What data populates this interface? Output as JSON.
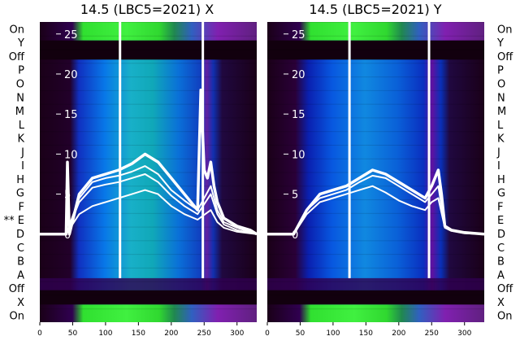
{
  "chart_data": [
    {
      "type": "heatmap",
      "title": "14.5 (LBC5=2021) X",
      "x_ticks": [
        0,
        50,
        100,
        150,
        200,
        250,
        300
      ],
      "xlim": [
        0,
        330
      ],
      "y_ticks": [
        0,
        5,
        10,
        15,
        20,
        25
      ],
      "ylim": [
        -11,
        26.5
      ],
      "row_labels": [
        "On",
        "Y",
        "Off",
        "P",
        "O",
        "N",
        "M",
        "L",
        "K",
        "J",
        "I",
        "H",
        "G",
        "F",
        "E",
        "D",
        "C",
        "B",
        "A",
        "Off",
        "X",
        "On"
      ],
      "marked_row": "E",
      "marker_text": "**",
      "series": [
        {
          "name": "",
          "x": [
            0,
            40,
            42,
            45,
            60,
            80,
            100,
            120,
            140,
            160,
            180,
            200,
            220,
            240,
            245,
            250,
            255,
            260,
            265,
            270,
            280,
            300,
            320,
            330
          ],
          "y": [
            0,
            0,
            9,
            0,
            5,
            7,
            7.5,
            8,
            8.8,
            10,
            9,
            7,
            5,
            3,
            18,
            8,
            7,
            9,
            6,
            4,
            2,
            1,
            0.5,
            0
          ]
        },
        {
          "name": "",
          "x": [
            0,
            40,
            60,
            80,
            100,
            120,
            140,
            160,
            180,
            200,
            220,
            240,
            260,
            270,
            280,
            300,
            330
          ],
          "y": [
            0,
            0,
            4.5,
            6.5,
            7,
            7.3,
            7.8,
            8.5,
            7.5,
            5.5,
            4.2,
            3,
            6,
            3,
            1.5,
            0.8,
            0
          ]
        },
        {
          "name": "",
          "x": [
            0,
            40,
            60,
            80,
            100,
            120,
            140,
            160,
            180,
            200,
            220,
            240,
            260,
            270,
            280,
            300,
            330
          ],
          "y": [
            0,
            0,
            4,
            5.8,
            6.2,
            6.5,
            7,
            7.5,
            6.5,
            4.8,
            3.5,
            2.5,
            5,
            2.5,
            1.2,
            0.5,
            0
          ]
        },
        {
          "name": "",
          "x": [
            0,
            40,
            60,
            80,
            100,
            120,
            140,
            160,
            180,
            200,
            220,
            240,
            260,
            270,
            280,
            300,
            330
          ],
          "y": [
            0,
            0,
            2.5,
            3.5,
            4,
            4.5,
            5,
            5.5,
            5,
            3.5,
            2.5,
            1.8,
            3,
            1.5,
            0.8,
            0.3,
            0
          ]
        }
      ]
    },
    {
      "type": "heatmap",
      "title": "14.5 (LBC5=2021) Y",
      "x_ticks": [
        0,
        50,
        100,
        150,
        200,
        250,
        300
      ],
      "xlim": [
        0,
        330
      ],
      "y_ticks": [
        0,
        5,
        10,
        15,
        20,
        25
      ],
      "ylim": [
        -11,
        26.5
      ],
      "row_labels": [
        "On",
        "Y",
        "Off",
        "P",
        "O",
        "N",
        "M",
        "L",
        "K",
        "J",
        "I",
        "H",
        "G",
        "F",
        "E",
        "D",
        "C",
        "B",
        "A",
        "Off",
        "X",
        "On"
      ],
      "series": [
        {
          "name": "",
          "x": [
            0,
            40,
            60,
            80,
            100,
            120,
            140,
            160,
            180,
            200,
            220,
            240,
            250,
            260,
            265,
            270,
            280,
            300,
            330
          ],
          "y": [
            0,
            0,
            3,
            5,
            5.5,
            6,
            7,
            8,
            7.5,
            6.5,
            5.5,
            4.5,
            6,
            8,
            5,
            1,
            0.5,
            0.2,
            0
          ]
        },
        {
          "name": "",
          "x": [
            0,
            40,
            60,
            80,
            100,
            120,
            140,
            160,
            180,
            200,
            220,
            240,
            250,
            260,
            270,
            280,
            300,
            330
          ],
          "y": [
            0,
            0,
            3,
            4.5,
            5,
            5.5,
            6.5,
            7.3,
            7,
            6,
            5,
            4,
            5,
            6,
            1,
            0.5,
            0.2,
            0
          ]
        },
        {
          "name": "",
          "x": [
            0,
            40,
            60,
            80,
            100,
            120,
            140,
            160,
            180,
            200,
            220,
            240,
            250,
            260,
            270,
            280,
            300,
            330
          ],
          "y": [
            0,
            0,
            2.5,
            4,
            4.5,
            5,
            5.5,
            6,
            5.2,
            4.2,
            3.5,
            3,
            4,
            4.5,
            0.8,
            0.4,
            0.1,
            0
          ]
        }
      ]
    }
  ]
}
